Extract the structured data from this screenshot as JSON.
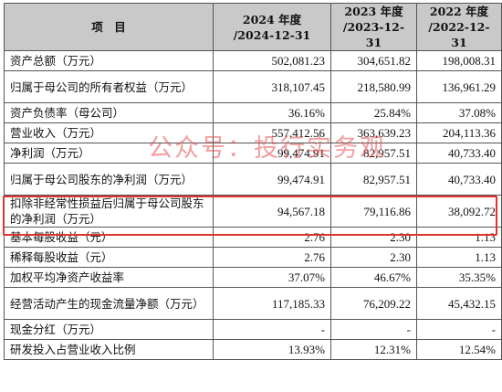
{
  "header": {
    "item": "项　目",
    "col1": [
      "2024 年度",
      "/2024-12-31"
    ],
    "col2": [
      "2023 年度",
      "/2023-12-31"
    ],
    "col3": [
      "2022 年度",
      "/2022-12-31"
    ]
  },
  "rows": [
    {
      "label": "资产总额（万元）",
      "v1": "502,081.23",
      "v2": "304,651.82",
      "v3": "198,008.31"
    },
    {
      "label": "归属于母公司的所有者权益（万元）",
      "v1": "318,107.45",
      "v2": "218,580.99",
      "v3": "136,961.29"
    },
    {
      "label": "资产负债率（母公司）",
      "v1": "36.16%",
      "v2": "25.84%",
      "v3": "37.08%"
    },
    {
      "label": "营业收入（万元）",
      "v1": "557,412.56",
      "v2": "363,639.23",
      "v3": "204,113.36"
    },
    {
      "label": "净利润（万元）",
      "v1": "99,474.91",
      "v2": "82,957.51",
      "v3": "40,733.40"
    },
    {
      "label": "归属于母公司股东的净利润（万元）",
      "v1": "99,474.91",
      "v2": "82,957.51",
      "v3": "40,733.40"
    },
    {
      "label": "扣除非经常性损益后归属于母公司股东的净利润（万元）",
      "v1": "94,567.18",
      "v2": "79,116.86",
      "v3": "38,092.72"
    },
    {
      "label": "基本每股收益（元）",
      "v1": "2.76",
      "v2": "2.30",
      "v3": "1.13"
    },
    {
      "label": "稀释每股收益（元）",
      "v1": "2.76",
      "v2": "2.30",
      "v3": "1.13"
    },
    {
      "label": "加权平均净资产收益率",
      "v1": "37.07%",
      "v2": "46.67%",
      "v3": "35.35%"
    },
    {
      "label": "经营活动产生的现金流量净额（万元）",
      "v1": "117,185.33",
      "v2": "76,209.22",
      "v3": "45,432.15"
    },
    {
      "label": "现金分红（万元）",
      "v1": "-",
      "v2": "-",
      "v3": "-"
    },
    {
      "label": "研发投入占营业收入比例",
      "v1": "13.93%",
      "v2": "12.31%",
      "v3": "12.54%"
    }
  ],
  "watermark": "公众号：投行实务观",
  "colors": {
    "highlight_border": "#e0332c",
    "header_bg": "#c9c9c9"
  }
}
